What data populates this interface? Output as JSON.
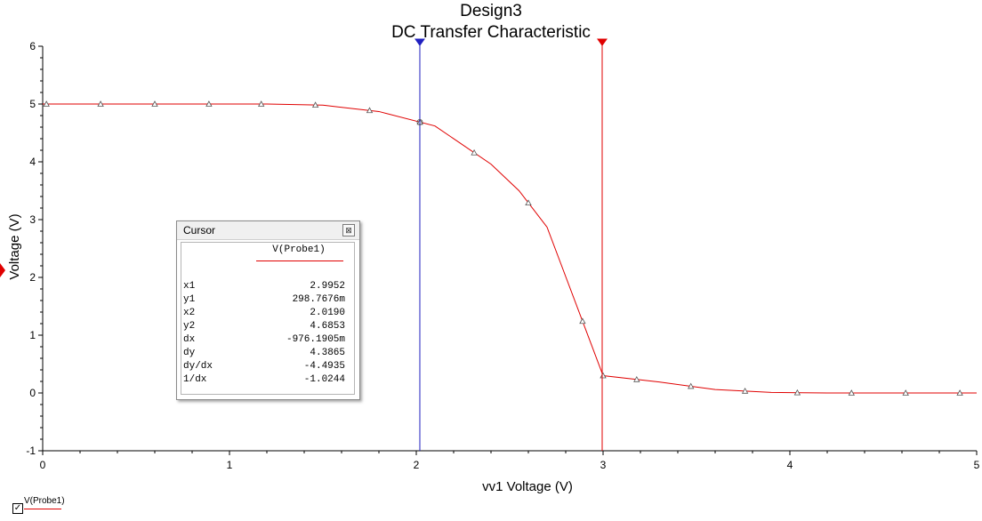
{
  "chart_data": {
    "type": "line",
    "title": "Design3",
    "subtitle": "DC Transfer Characteristic",
    "xlabel": "vv1 Voltage (V)",
    "ylabel": "Voltage (V)",
    "xlim": [
      0,
      5
    ],
    "ylim": [
      -1,
      6
    ],
    "x_ticks": [
      "0",
      "1",
      "2",
      "3",
      "4",
      "5"
    ],
    "y_ticks": [
      "-1",
      "0",
      "1",
      "2",
      "3",
      "4",
      "5",
      "6"
    ],
    "grid": false,
    "series": [
      {
        "name": "V(Probe1)",
        "color": "#e00000",
        "x": [
          0,
          0.3,
          0.6,
          0.9,
          1.2,
          1.5,
          1.8,
          2.1,
          2.4,
          2.55,
          2.7,
          3.0,
          3.3,
          3.6,
          3.9,
          4.2,
          4.5,
          4.8,
          5.0
        ],
        "y": [
          5.0,
          5.0,
          5.0,
          5.0,
          5.0,
          4.98,
          4.87,
          4.62,
          3.96,
          3.5,
          2.87,
          0.3,
          0.19,
          0.06,
          0.01,
          0.0,
          0.0,
          0.0,
          0.0
        ],
        "marker_x": [
          0.02,
          0.31,
          0.6,
          0.89,
          1.17,
          1.46,
          1.75,
          2.02,
          2.31,
          2.6,
          2.89,
          3.0,
          3.18,
          3.47,
          3.76,
          4.04,
          4.33,
          4.62,
          4.91
        ],
        "marker": "triangle"
      }
    ],
    "cursors": [
      {
        "name": "cursor-1",
        "x": 2.9952,
        "color": "#e00000"
      },
      {
        "name": "cursor-2",
        "x": 2.019,
        "color": "#2020c0"
      }
    ]
  },
  "cursor_panel": {
    "title": "Cursor",
    "close_icon": "close-box-icon",
    "series_label": "V(Probe1)",
    "rows": [
      {
        "key": "x1",
        "value": "2.9952"
      },
      {
        "key": "y1",
        "value": "298.7676m"
      },
      {
        "key": "x2",
        "value": "2.0190"
      },
      {
        "key": "y2",
        "value": "4.6853"
      },
      {
        "key": "dx",
        "value": "-976.1905m"
      },
      {
        "key": "dy",
        "value": "4.3865"
      },
      {
        "key": "dy/dx",
        "value": "-4.4935"
      },
      {
        "key": "1/dx",
        "value": "-1.0244"
      }
    ]
  },
  "legend": {
    "label": "V(Probe1)",
    "checked": true,
    "check_glyph": "✓"
  }
}
